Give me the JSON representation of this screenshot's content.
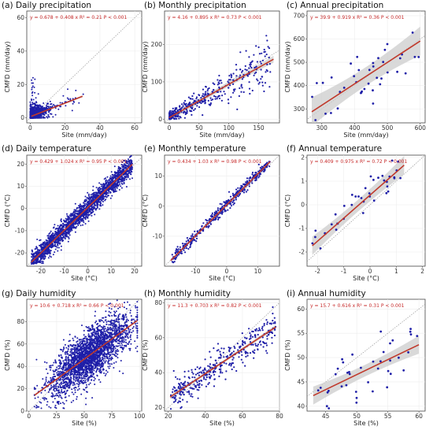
{
  "chart_data": [
    {
      "id": "a",
      "type": "scatter",
      "title": "(a) Daily precipitation",
      "xlabel": "Site (mm/day)",
      "ylabel": "CMFD (mm/day)",
      "xlim": [
        -2,
        64
      ],
      "ylim": [
        -3,
        64
      ],
      "xticks": [
        0,
        20,
        40,
        60
      ],
      "yticks": [
        0,
        20,
        40,
        60
      ],
      "equation": "y = 0.678 + 0.408 x  R² = 0.21  P < 0.001",
      "fit": {
        "intercept": 0.678,
        "slope": 0.408,
        "r2": 0.21
      },
      "band": 0.4,
      "n_points": 1200,
      "cluster": {
        "xmax": 30,
        "ymax": 22,
        "scatter": 4,
        "floorx": 0,
        "floory": 0
      }
    },
    {
      "id": "b",
      "type": "scatter",
      "title": "(b) Monthly precipitation",
      "xlabel": "Site (mm/day)",
      "ylabel": "CMFD (mm/day)",
      "xlim": [
        -8,
        185
      ],
      "ylim": [
        -10,
        290
      ],
      "xticks": [
        0,
        50,
        100,
        150
      ],
      "yticks": [
        0,
        100,
        200
      ],
      "equation": "y = 4.16 + 0.895 x  R² = 0.73  P < 0.001",
      "fit": {
        "intercept": 4.16,
        "slope": 0.895,
        "r2": 0.73
      },
      "band": 6,
      "n_points": 380,
      "cluster": {
        "xmax": 175,
        "ymax": 280,
        "scatter": 25,
        "floorx": 0,
        "floory": 0
      }
    },
    {
      "id": "c",
      "type": "scatter",
      "title": "(c) Annual precipitation",
      "xlabel": "Site (mm/day)",
      "ylabel": "CMFD (mm/day)",
      "xlim": [
        255,
        615
      ],
      "ylim": [
        240,
        720
      ],
      "xticks": [
        300,
        400,
        500,
        600
      ],
      "yticks": [
        300,
        400,
        500,
        600,
        700
      ],
      "equation": "y = 39.9 + 0.919 x  R² = 0.36  P < 0.001",
      "fit": {
        "intercept": 39.9,
        "slope": 0.919,
        "r2": 0.36
      },
      "band": 40,
      "n_points": 40,
      "cluster": {
        "xmax": 600,
        "ymax": 700,
        "scatter": 65,
        "floorx": 270,
        "floory": 250
      }
    },
    {
      "id": "d",
      "type": "scatter",
      "title": "(d) Daily temperature",
      "xlabel": "Site (°C)",
      "ylabel": "CMFD (°C)",
      "xlim": [
        -26,
        23
      ],
      "ylim": [
        -26,
        24
      ],
      "xticks": [
        -20,
        -10,
        0,
        10,
        20
      ],
      "yticks": [
        -20,
        -10,
        0,
        10,
        20
      ],
      "equation": "y = 0.429 + 1.024 x  R² = 0.95  P < 0.001",
      "fit": {
        "intercept": 0.429,
        "slope": 1.024,
        "r2": 0.95
      },
      "band": 0.4,
      "n_points": 2200,
      "cluster": {
        "xmin": -24,
        "xmax": 19,
        "scatter": 2.3,
        "floorx": -24,
        "floory": -25
      }
    },
    {
      "id": "e",
      "type": "scatter",
      "title": "(e) Monthly temperature",
      "xlabel": "Site (°C)",
      "ylabel": "CMFD (°C)",
      "xlim": [
        -20,
        17
      ],
      "ylim": [
        -20,
        17
      ],
      "xticks": [
        -10,
        0,
        10
      ],
      "yticks": [
        -10,
        0,
        10
      ],
      "equation": "y = 0.434 + 1.03 x  R² = 0.98  P < 0.001",
      "fit": {
        "intercept": 0.434,
        "slope": 1.03,
        "r2": 0.98
      },
      "band": 0.25,
      "n_points": 420,
      "cluster": {
        "xmin": -18,
        "xmax": 14,
        "scatter": 0.9,
        "floorx": -19,
        "floory": -19
      }
    },
    {
      "id": "f",
      "type": "scatter",
      "title": "(f) Annual temperature",
      "xlabel": "Site (°C)",
      "ylabel": "CMFD (°C)",
      "xlim": [
        -2.4,
        2.1
      ],
      "ylim": [
        -2.6,
        2.1
      ],
      "xticks": [
        -2,
        -1,
        0,
        1,
        2
      ],
      "yticks": [
        -2,
        -1,
        0,
        1,
        2
      ],
      "equation": "y = 0.409 + 0.975 x  R² = 0.72  P < 0.001",
      "fit": {
        "intercept": 0.409,
        "slope": 0.975,
        "r2": 0.72
      },
      "band": 0.25,
      "n_points": 40,
      "cluster": {
        "xmin": -2.2,
        "xmax": 1.3,
        "scatter": 0.35,
        "floorx": -2.4,
        "floory": -2.6
      }
    },
    {
      "id": "g",
      "type": "scatter",
      "title": "(g) Daily humidity",
      "xlabel": "Site (%)",
      "ylabel": "CMFD (%)",
      "xlim": [
        -2,
        102
      ],
      "ylim": [
        0,
        100
      ],
      "xticks": [
        0,
        25,
        50,
        75,
        100
      ],
      "yticks": [
        0,
        20,
        40,
        60,
        80
      ],
      "equation": "y = 10.6 + 0.718 x  R² = 0.66  P < 0.001",
      "fit": {
        "intercept": 10.6,
        "slope": 0.718,
        "r2": 0.66
      },
      "band": 0.6,
      "n_points": 2600,
      "cluster": {
        "xmin": 5,
        "xmax": 98,
        "scatter": 11,
        "floorx": 0,
        "floory": 2
      }
    },
    {
      "id": "h",
      "type": "scatter",
      "title": "(h) Monthly humidity",
      "xlabel": "Site (%)",
      "ylabel": "CMFD (%)",
      "xlim": [
        18,
        80
      ],
      "ylim": [
        18,
        82
      ],
      "xticks": [
        20,
        40,
        60,
        80
      ],
      "yticks": [
        20,
        40,
        60,
        80
      ],
      "equation": "y = 11.3 + 0.703 x  R² = 0.82  P < 0.001",
      "fit": {
        "intercept": 11.3,
        "slope": 0.703,
        "r2": 0.82
      },
      "band": 0.8,
      "n_points": 380,
      "cluster": {
        "xmin": 21,
        "xmax": 78,
        "scatter": 4.5,
        "floorx": 18,
        "floory": 18
      }
    },
    {
      "id": "i",
      "type": "scatter",
      "title": "(i) Annual humidity",
      "xlabel": "Site (%)",
      "ylabel": "CMFD (%)",
      "xlim": [
        42,
        61
      ],
      "ylim": [
        39,
        62
      ],
      "xticks": [
        45,
        50,
        55,
        60
      ],
      "yticks": [
        40,
        45,
        50,
        55,
        60
      ],
      "equation": "y = 15.7 + 0.616 x  R² = 0.31  P < 0.001",
      "fit": {
        "intercept": 15.7,
        "slope": 0.616,
        "r2": 0.31
      },
      "band": 1.2,
      "n_points": 40,
      "cluster": {
        "xmin": 43,
        "xmax": 60,
        "scatter": 3.2,
        "floorx": 42,
        "floory": 39
      }
    }
  ],
  "colors": {
    "points": "#1f1fa8",
    "fit": "#c0392b",
    "band": "#cccccc",
    "identity": "#999999",
    "grid": "#ececec"
  }
}
